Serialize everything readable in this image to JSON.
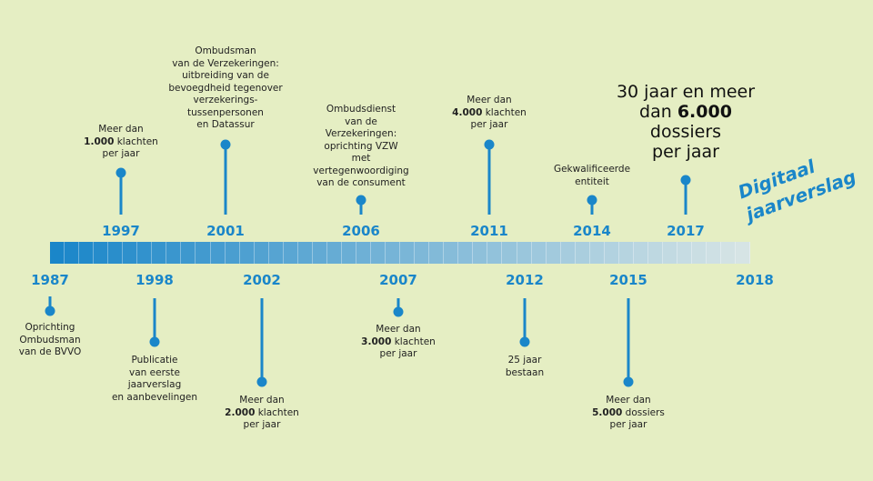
{
  "colors": {
    "background": "#e5eec3",
    "accent": "#1a86c9",
    "bar_start": "#1a86c9",
    "bar_end": "#d6e4e5"
  },
  "badge": {
    "line1": "Digitaal",
    "line2": "jaarverslag"
  },
  "milestones": [
    {
      "year": "1987",
      "position": "below",
      "lines": [
        "Oprichting",
        "Ombudsman",
        "van de BVVO"
      ]
    },
    {
      "year": "1997",
      "position": "above",
      "lines": [
        "Meer dan",
        "**1.000** klachten",
        "per jaar"
      ]
    },
    {
      "year": "1998",
      "position": "below",
      "lines": [
        "Publicatie",
        "van eerste",
        "jaarverslag",
        "en aanbevelingen"
      ]
    },
    {
      "year": "2001",
      "position": "above",
      "lines": [
        "Ombudsman",
        "van de Verzekeringen:",
        "uitbreiding van de",
        "bevoegdheid tegenover",
        "verzekerings-",
        "tussenpersonen",
        "en Datassur"
      ]
    },
    {
      "year": "2002",
      "position": "below",
      "lines": [
        "Meer dan",
        "**2.000** klachten",
        "per jaar"
      ]
    },
    {
      "year": "2006",
      "position": "above",
      "lines": [
        "Ombudsdienst",
        "van de",
        "Verzekeringen:",
        "oprichting VZW",
        "met",
        "vertegenwoordiging",
        "van de consument"
      ]
    },
    {
      "year": "2007",
      "position": "below",
      "lines": [
        "Meer dan",
        "**3.000** klachten",
        "per jaar"
      ]
    },
    {
      "year": "2011",
      "position": "above",
      "lines": [
        "Meer dan",
        "**4.000** klachten",
        "per jaar"
      ]
    },
    {
      "year": "2012",
      "position": "below",
      "lines": [
        "25 jaar",
        "bestaan"
      ]
    },
    {
      "year": "2014",
      "position": "above",
      "lines": [
        "Gekwalificeerde",
        "entiteit"
      ]
    },
    {
      "year": "2015",
      "position": "below",
      "lines": [
        "Meer dan",
        "**5.000** dossiers",
        "per jaar"
      ]
    },
    {
      "year": "2017",
      "position": "above",
      "highlight": true,
      "lines": [
        "30 jaar en meer",
        "dan **6.000**",
        "dossiers",
        "per jaar"
      ]
    },
    {
      "year": "2018",
      "position": "below",
      "lines": []
    }
  ]
}
